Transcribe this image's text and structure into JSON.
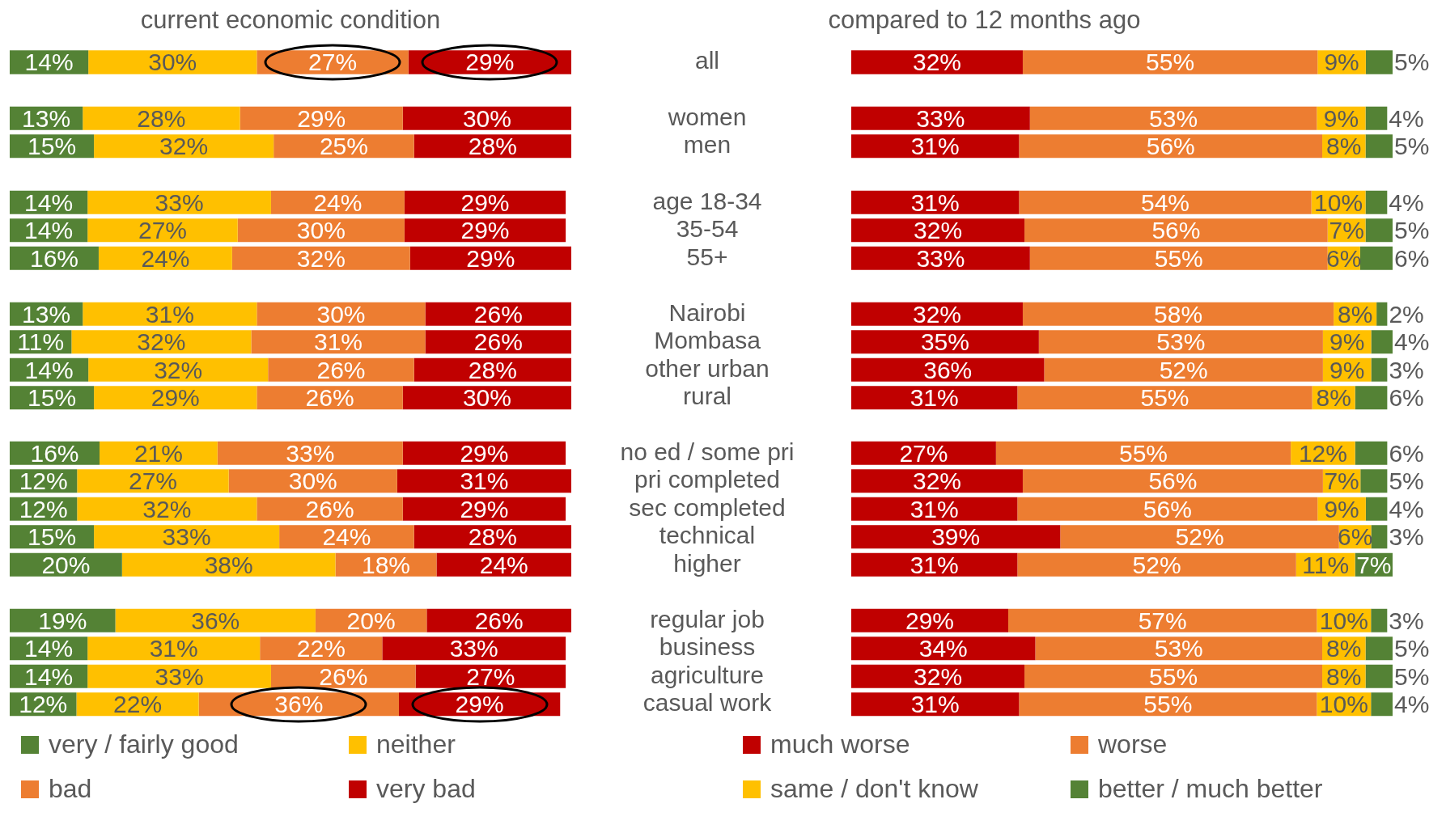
{
  "chart_data": [
    {
      "type": "bar",
      "orientation": "horizontal",
      "stacked": true,
      "title": "current economic condition",
      "tick_labels": false,
      "categories": [
        null
      ],
      "series": [
        {
          "color": "#548235",
          "values": [
            14
          ],
          "value_labels": [
            "14%"
          ]
        },
        {
          "color": "#ffc000",
          "values": [
            30
          ],
          "value_labels": [
            "30%"
          ]
        },
        {
          "color": "#ed7d31",
          "values": [
            27
          ],
          "value_labels": [
            "27%"
          ]
        },
        {
          "color": "#c00000",
          "values": [
            29
          ],
          "value_labels": [
            "29%"
          ]
        }
      ]
    },
    {
      "type": "bar",
      "orientation": "horizontal",
      "stacked": true,
      "title": "compared to 12 months ago",
      "tick_labels": "y",
      "categories": [
        "all"
      ],
      "series": [
        {
          "color": "#c00000",
          "values": [
            32
          ],
          "value_labels": [
            "32%"
          ]
        },
        {
          "color": "#ed7d31",
          "values": [
            55
          ],
          "value_labels": [
            "55%"
          ]
        },
        {
          "color": "#ffc000",
          "values": [
            9
          ],
          "value_labels": [
            "9%"
          ]
        },
        {
          "color": "#548235",
          "values": [
            5
          ],
          "value_labels": [
            "5%"
          ]
        }
      ]
    },
    {
      "type": "bar",
      "orientation": "horizontal",
      "stacked": true,
      "tick_labels": false,
      "categories": [
        null,
        null
      ],
      "series": [
        {
          "color": "#548235",
          "values": [
            13,
            15
          ],
          "value_labels": [
            "13%",
            "15%"
          ]
        },
        {
          "color": "#ffc000",
          "values": [
            28,
            32
          ],
          "value_labels": [
            "28%",
            "32%"
          ]
        },
        {
          "color": "#ed7d31",
          "values": [
            29,
            25
          ],
          "value_labels": [
            "29%",
            "25%"
          ]
        },
        {
          "color": "#c00000",
          "values": [
            30,
            28
          ],
          "value_labels": [
            "30%",
            "28%"
          ]
        }
      ]
    },
    {
      "type": "bar",
      "orientation": "horizontal",
      "stacked": true,
      "tick_labels": "y",
      "categories": [
        "women",
        "men"
      ],
      "series": [
        {
          "color": "#c00000",
          "values": [
            33,
            31
          ],
          "value_labels": [
            "33%",
            "31%"
          ]
        },
        {
          "color": "#ed7d31",
          "values": [
            53,
            56
          ],
          "value_labels": [
            "53%",
            "56%"
          ]
        },
        {
          "color": "#ffc000",
          "values": [
            9,
            8
          ],
          "value_labels": [
            "9%",
            "8%"
          ]
        },
        {
          "color": "#548235",
          "values": [
            4,
            5
          ],
          "value_labels": [
            "4%",
            "5%"
          ]
        }
      ]
    },
    {
      "type": "bar",
      "orientation": "horizontal",
      "stacked": true,
      "tick_labels": false,
      "categories": [
        null,
        null,
        null
      ],
      "series": [
        {
          "color": "#548235",
          "values": [
            14,
            14,
            16
          ],
          "value_labels": [
            "14%",
            "14%",
            "16%"
          ]
        },
        {
          "color": "#ffc000",
          "values": [
            33,
            27,
            24
          ],
          "value_labels": [
            "33%",
            "27%",
            "24%"
          ]
        },
        {
          "color": "#ed7d31",
          "values": [
            24,
            30,
            32
          ],
          "value_labels": [
            "24%",
            "30%",
            "32%"
          ]
        },
        {
          "color": "#c00000",
          "values": [
            29,
            29,
            29
          ],
          "value_labels": [
            "29%",
            "29%",
            "29%"
          ]
        }
      ]
    },
    {
      "type": "bar",
      "orientation": "horizontal",
      "stacked": true,
      "tick_labels": "y",
      "categories": [
        "age 18-34",
        "35-54",
        "55+"
      ],
      "series": [
        {
          "color": "#c00000",
          "values": [
            31,
            32,
            33
          ],
          "value_labels": [
            "31%",
            "32%",
            "33%"
          ]
        },
        {
          "color": "#ed7d31",
          "values": [
            54,
            56,
            55
          ],
          "value_labels": [
            "54%",
            "56%",
            "55%"
          ]
        },
        {
          "color": "#ffc000",
          "values": [
            10,
            7,
            6
          ],
          "value_labels": [
            "10%",
            "7%",
            "6%"
          ]
        },
        {
          "color": "#548235",
          "values": [
            4,
            5,
            6
          ],
          "value_labels": [
            "4%",
            "5%",
            "6%"
          ]
        }
      ]
    },
    {
      "type": "bar",
      "orientation": "horizontal",
      "stacked": true,
      "tick_labels": false,
      "categories": [
        null,
        null,
        null,
        null
      ],
      "series": [
        {
          "color": "#548235",
          "values": [
            13,
            11,
            14,
            15
          ],
          "value_labels": [
            "13%",
            "11%",
            "14%",
            "15%"
          ]
        },
        {
          "color": "#ffc000",
          "values": [
            31,
            32,
            32,
            29
          ],
          "value_labels": [
            "31%",
            "32%",
            "32%",
            "29%"
          ]
        },
        {
          "color": "#ed7d31",
          "values": [
            30,
            31,
            26,
            26
          ],
          "value_labels": [
            "30%",
            "31%",
            "26%",
            "26%"
          ]
        },
        {
          "color": "#c00000",
          "values": [
            26,
            26,
            28,
            30
          ],
          "value_labels": [
            "26%",
            "26%",
            "28%",
            "30%"
          ]
        }
      ]
    },
    {
      "type": "bar",
      "orientation": "horizontal",
      "stacked": true,
      "tick_labels": "y",
      "categories": [
        "Nairobi",
        "Mombasa",
        "other urban",
        "rural"
      ],
      "series": [
        {
          "color": "#c00000",
          "values": [
            32,
            35,
            36,
            31
          ],
          "value_labels": [
            "32%",
            "35%",
            "36%",
            "31%"
          ]
        },
        {
          "color": "#ed7d31",
          "values": [
            58,
            53,
            52,
            55
          ],
          "value_labels": [
            "58%",
            "53%",
            "52%",
            "55%"
          ]
        },
        {
          "color": "#ffc000",
          "values": [
            8,
            9,
            9,
            8
          ],
          "value_labels": [
            "8%",
            "9%",
            "9%",
            "8%"
          ]
        },
        {
          "color": "#548235",
          "values": [
            2,
            4,
            3,
            6
          ],
          "value_labels": [
            "2%",
            "4%",
            "3%",
            "6%"
          ]
        }
      ]
    },
    {
      "type": "bar",
      "orientation": "horizontal",
      "stacked": true,
      "tick_labels": false,
      "categories": [
        null,
        null,
        null,
        null,
        null
      ],
      "series": [
        {
          "color": "#548235",
          "values": [
            16,
            12,
            12,
            15,
            20
          ],
          "value_labels": [
            "16%",
            "12%",
            "12%",
            "15%",
            "20%"
          ]
        },
        {
          "color": "#ffc000",
          "values": [
            21,
            27,
            32,
            33,
            38
          ],
          "value_labels": [
            "21%",
            "27%",
            "32%",
            "33%",
            "38%"
          ]
        },
        {
          "color": "#ed7d31",
          "values": [
            33,
            30,
            26,
            24,
            18
          ],
          "value_labels": [
            "33%",
            "30%",
            "26%",
            "24%",
            "18%"
          ]
        },
        {
          "color": "#c00000",
          "values": [
            29,
            31,
            29,
            28,
            24
          ],
          "value_labels": [
            "29%",
            "31%",
            "29%",
            "28%",
            "24%"
          ]
        }
      ]
    },
    {
      "type": "bar",
      "orientation": "horizontal",
      "stacked": true,
      "tick_labels": "y",
      "categories": [
        "no ed / some pri",
        "pri completed",
        "sec completed",
        "technical",
        "higher"
      ],
      "series": [
        {
          "color": "#c00000",
          "values": [
            27,
            32,
            31,
            39,
            31
          ],
          "value_labels": [
            "27%",
            "32%",
            "31%",
            "39%",
            "31%"
          ]
        },
        {
          "color": "#ed7d31",
          "values": [
            55,
            56,
            56,
            52,
            52
          ],
          "value_labels": [
            "55%",
            "56%",
            "56%",
            "52%",
            "52%"
          ]
        },
        {
          "color": "#ffc000",
          "values": [
            12,
            7,
            9,
            6,
            11
          ],
          "value_labels": [
            "12%",
            "7%",
            "9%",
            "6%",
            "11%"
          ]
        },
        {
          "color": "#548235",
          "values": [
            6,
            5,
            4,
            3,
            7
          ],
          "value_labels": [
            "6%",
            "5%",
            "4%",
            "3%",
            "7%"
          ]
        }
      ]
    },
    {
      "type": "bar",
      "orientation": "horizontal",
      "stacked": true,
      "tick_labels": false,
      "legend": "bottom",
      "categories": [
        null,
        null,
        null,
        null
      ],
      "series": [
        {
          "name": "very / fairly good",
          "color": "#548235",
          "values": [
            19,
            14,
            14,
            12
          ],
          "value_labels": [
            "19%",
            "14%",
            "14%",
            "12%"
          ]
        },
        {
          "name": "neither",
          "color": "#ffc000",
          "values": [
            36,
            31,
            33,
            22
          ],
          "value_labels": [
            "36%",
            "31%",
            "33%",
            "22%"
          ]
        },
        {
          "name": "bad",
          "color": "#ed7d31",
          "values": [
            20,
            22,
            26,
            36
          ],
          "value_labels": [
            "20%",
            "22%",
            "26%",
            "36%"
          ]
        },
        {
          "name": "very bad",
          "color": "#c00000",
          "values": [
            26,
            33,
            27,
            29
          ],
          "value_labels": [
            "26%",
            "33%",
            "27%",
            "29%"
          ]
        }
      ]
    },
    {
      "type": "bar",
      "orientation": "horizontal",
      "stacked": true,
      "tick_labels": "y",
      "legend": "bottom",
      "categories": [
        "regular job",
        "business",
        "agriculture",
        "casual work"
      ],
      "series": [
        {
          "name": "much worse",
          "color": "#c00000",
          "values": [
            29,
            34,
            32,
            31
          ],
          "value_labels": [
            "29%",
            "34%",
            "32%",
            "31%"
          ]
        },
        {
          "name": "worse",
          "color": "#ed7d31",
          "values": [
            57,
            53,
            55,
            55
          ],
          "value_labels": [
            "57%",
            "53%",
            "55%",
            "55%"
          ]
        },
        {
          "name": "same / don't know",
          "color": "#ffc000",
          "values": [
            10,
            8,
            8,
            10
          ],
          "value_labels": [
            "10%",
            "8%",
            "8%",
            "10%"
          ]
        },
        {
          "name": "better / much better",
          "color": "#548235",
          "values": [
            3,
            5,
            5,
            4
          ],
          "value_labels": [
            "3%",
            "5%",
            "5%",
            "4%"
          ]
        }
      ]
    }
  ]
}
